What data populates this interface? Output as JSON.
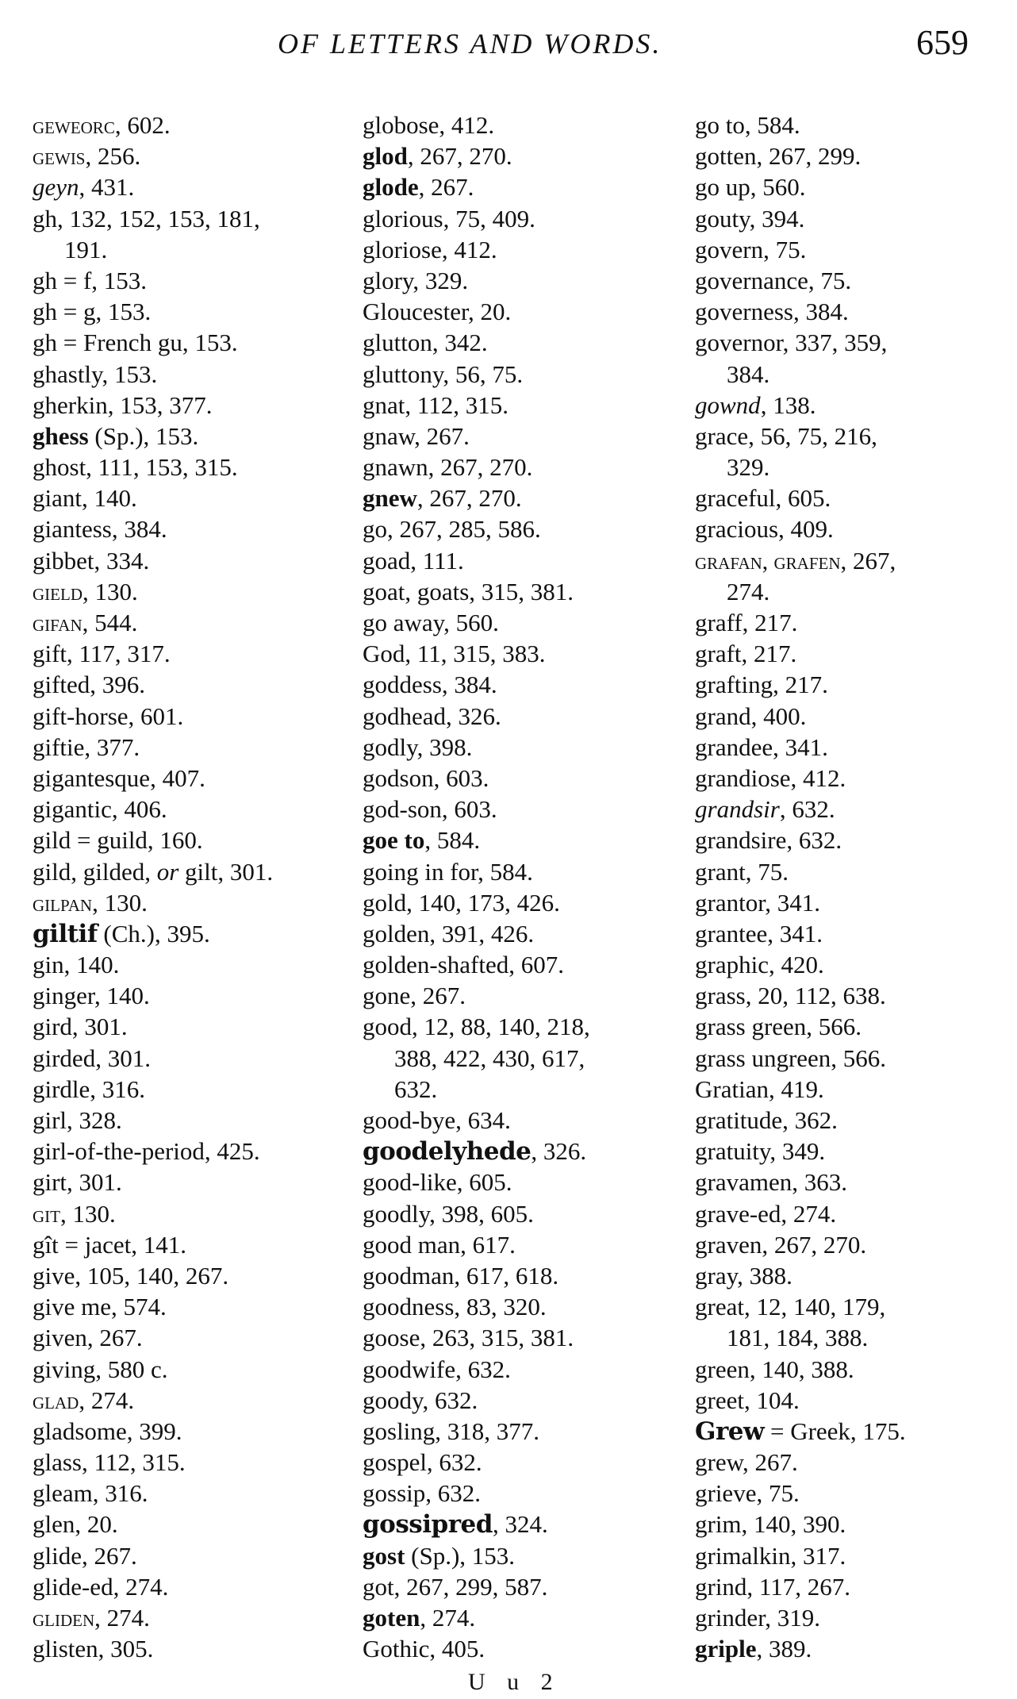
{
  "header": {
    "title": "OF LETTERS AND WORDS.",
    "page_number": "659"
  },
  "footer": {
    "signature": "U u 2"
  },
  "columns": [
    [
      {
        "parts": [
          {
            "t": "GEWEORC",
            "s": "sc"
          },
          {
            "t": ", 602."
          }
        ]
      },
      {
        "parts": [
          {
            "t": "GEWIS",
            "s": "sc"
          },
          {
            "t": ", 256."
          }
        ]
      },
      {
        "parts": [
          {
            "t": "geyn",
            "s": "it"
          },
          {
            "t": ", 431."
          }
        ]
      },
      {
        "parts": [
          {
            "t": "gh, 132, 152, 153, 181,"
          }
        ]
      },
      {
        "cont": true,
        "parts": [
          {
            "t": "191."
          }
        ]
      },
      {
        "parts": [
          {
            "t": "gh = f, 153."
          }
        ]
      },
      {
        "parts": [
          {
            "t": "gh = g, 153."
          }
        ]
      },
      {
        "parts": [
          {
            "t": "gh = French gu, 153."
          }
        ]
      },
      {
        "parts": [
          {
            "t": "ghastly, 153."
          }
        ]
      },
      {
        "parts": [
          {
            "t": "gherkin, 153, 377."
          }
        ]
      },
      {
        "parts": [
          {
            "t": "ghess",
            "s": "b"
          },
          {
            "t": " (Sp.), 153."
          }
        ]
      },
      {
        "parts": [
          {
            "t": "ghost, 111, 153, 315."
          }
        ]
      },
      {
        "parts": [
          {
            "t": "giant, 140."
          }
        ]
      },
      {
        "parts": [
          {
            "t": "giantess, 384."
          }
        ]
      },
      {
        "parts": [
          {
            "t": "gibbet, 334."
          }
        ]
      },
      {
        "parts": [
          {
            "t": "GIELD",
            "s": "sc"
          },
          {
            "t": ", 130."
          }
        ]
      },
      {
        "parts": [
          {
            "t": "GIFAN",
            "s": "sc"
          },
          {
            "t": ", 544."
          }
        ]
      },
      {
        "parts": [
          {
            "t": "gift, 117, 317."
          }
        ]
      },
      {
        "parts": [
          {
            "t": "gifted, 396."
          }
        ]
      },
      {
        "parts": [
          {
            "t": "gift-horse, 601."
          }
        ]
      },
      {
        "parts": [
          {
            "t": "giftie, 377."
          }
        ]
      },
      {
        "parts": [
          {
            "t": "gigantesque, 407."
          }
        ]
      },
      {
        "parts": [
          {
            "t": "gigantic, 406."
          }
        ]
      },
      {
        "parts": [
          {
            "t": "gild = guild, 160."
          }
        ]
      },
      {
        "parts": [
          {
            "t": "gild, gilded, "
          },
          {
            "t": "or",
            "s": "it"
          },
          {
            "t": " gilt, 301."
          }
        ]
      },
      {
        "parts": [
          {
            "t": "GILPAN",
            "s": "sc"
          },
          {
            "t": ", 130."
          }
        ]
      },
      {
        "parts": [
          {
            "t": "giltif",
            "s": "bk"
          },
          {
            "t": " (Ch.), 395."
          }
        ]
      },
      {
        "parts": [
          {
            "t": "gin, 140."
          }
        ]
      },
      {
        "parts": [
          {
            "t": "ginger, 140."
          }
        ]
      },
      {
        "parts": [
          {
            "t": "gird, 301."
          }
        ]
      },
      {
        "parts": [
          {
            "t": "girded, 301."
          }
        ]
      },
      {
        "parts": [
          {
            "t": "girdle, 316."
          }
        ]
      },
      {
        "parts": [
          {
            "t": "girl, 328."
          }
        ]
      },
      {
        "parts": [
          {
            "t": "girl-of-the-period, 425."
          }
        ]
      },
      {
        "parts": [
          {
            "t": "girt, 301."
          }
        ]
      },
      {
        "parts": [
          {
            "t": "GIT",
            "s": "sc"
          },
          {
            "t": ", 130."
          }
        ]
      },
      {
        "parts": [
          {
            "t": "gît = jacet, 141."
          }
        ]
      },
      {
        "parts": [
          {
            "t": "give, 105, 140, 267."
          }
        ]
      },
      {
        "parts": [
          {
            "t": "give me, 574."
          }
        ]
      },
      {
        "parts": [
          {
            "t": "given, 267."
          }
        ]
      },
      {
        "parts": [
          {
            "t": "giving, 580 c."
          }
        ]
      },
      {
        "parts": [
          {
            "t": "GLAD",
            "s": "sc"
          },
          {
            "t": ", 274."
          }
        ]
      },
      {
        "parts": [
          {
            "t": "gladsome, 399."
          }
        ]
      },
      {
        "parts": [
          {
            "t": "glass, 112, 315."
          }
        ]
      },
      {
        "parts": [
          {
            "t": "gleam, 316."
          }
        ]
      },
      {
        "parts": [
          {
            "t": "glen, 20."
          }
        ]
      },
      {
        "parts": [
          {
            "t": "glide, 267."
          }
        ]
      },
      {
        "parts": [
          {
            "t": "glide-ed, 274."
          }
        ]
      },
      {
        "parts": [
          {
            "t": "GLIDEN",
            "s": "sc"
          },
          {
            "t": ", 274."
          }
        ]
      },
      {
        "parts": [
          {
            "t": "glisten, 305."
          }
        ]
      }
    ],
    [
      {
        "parts": [
          {
            "t": "globose, 412."
          }
        ]
      },
      {
        "parts": [
          {
            "t": "glod",
            "s": "b"
          },
          {
            "t": ", 267, 270."
          }
        ]
      },
      {
        "parts": [
          {
            "t": "glode",
            "s": "b"
          },
          {
            "t": ", 267."
          }
        ]
      },
      {
        "parts": [
          {
            "t": "glorious, 75, 409."
          }
        ]
      },
      {
        "parts": [
          {
            "t": "gloriose, 412."
          }
        ]
      },
      {
        "parts": [
          {
            "t": "glory, 329."
          }
        ]
      },
      {
        "parts": [
          {
            "t": "Gloucester, 20."
          }
        ]
      },
      {
        "parts": [
          {
            "t": "glutton, 342."
          }
        ]
      },
      {
        "parts": [
          {
            "t": "gluttony, 56, 75."
          }
        ]
      },
      {
        "parts": [
          {
            "t": "gnat, 112, 315."
          }
        ]
      },
      {
        "parts": [
          {
            "t": "gnaw, 267."
          }
        ]
      },
      {
        "parts": [
          {
            "t": "gnawn, 267, 270."
          }
        ]
      },
      {
        "parts": [
          {
            "t": "gnew",
            "s": "b"
          },
          {
            "t": ", 267, 270."
          }
        ]
      },
      {
        "parts": [
          {
            "t": "go, 267, 285, 586."
          }
        ]
      },
      {
        "parts": [
          {
            "t": "goad, 111."
          }
        ]
      },
      {
        "parts": [
          {
            "t": "goat, goats, 315, 381."
          }
        ]
      },
      {
        "parts": [
          {
            "t": "go away, 560."
          }
        ]
      },
      {
        "parts": [
          {
            "t": "God, 11, 315, 383."
          }
        ]
      },
      {
        "parts": [
          {
            "t": "goddess, 384."
          }
        ]
      },
      {
        "parts": [
          {
            "t": "godhead, 326."
          }
        ]
      },
      {
        "parts": [
          {
            "t": "godly, 398."
          }
        ]
      },
      {
        "parts": [
          {
            "t": "godson, 603."
          }
        ]
      },
      {
        "parts": [
          {
            "t": "god-son, 603."
          }
        ]
      },
      {
        "parts": [
          {
            "t": "goe to",
            "s": "b"
          },
          {
            "t": ", 584."
          }
        ]
      },
      {
        "parts": [
          {
            "t": "going in for, 584."
          }
        ]
      },
      {
        "parts": [
          {
            "t": "gold, 140, 173, 426."
          }
        ]
      },
      {
        "parts": [
          {
            "t": "golden, 391, 426."
          }
        ]
      },
      {
        "parts": [
          {
            "t": "golden-shafted, 607."
          }
        ]
      },
      {
        "parts": [
          {
            "t": "gone, 267."
          }
        ]
      },
      {
        "parts": [
          {
            "t": "good, 12, 88, 140, 218,"
          }
        ]
      },
      {
        "cont": true,
        "parts": [
          {
            "t": "388, 422, 430, 617,"
          }
        ]
      },
      {
        "cont": true,
        "parts": [
          {
            "t": "632."
          }
        ]
      },
      {
        "parts": [
          {
            "t": "good-bye, 634."
          }
        ]
      },
      {
        "parts": [
          {
            "t": "goodelyhede",
            "s": "bk"
          },
          {
            "t": ", 326."
          }
        ]
      },
      {
        "parts": [
          {
            "t": "good-like, 605."
          }
        ]
      },
      {
        "parts": [
          {
            "t": "goodly, 398, 605."
          }
        ]
      },
      {
        "parts": [
          {
            "t": "good man, 617."
          }
        ]
      },
      {
        "parts": [
          {
            "t": "goodman, 617, 618."
          }
        ]
      },
      {
        "parts": [
          {
            "t": "goodness, 83, 320."
          }
        ]
      },
      {
        "parts": [
          {
            "t": "goose, 263, 315, 381."
          }
        ]
      },
      {
        "parts": [
          {
            "t": "goodwife, 632."
          }
        ]
      },
      {
        "parts": [
          {
            "t": "goody, 632."
          }
        ]
      },
      {
        "parts": [
          {
            "t": "gosling, 318, 377."
          }
        ]
      },
      {
        "parts": [
          {
            "t": "gospel, 632."
          }
        ]
      },
      {
        "parts": [
          {
            "t": "gossip, 632."
          }
        ]
      },
      {
        "parts": [
          {
            "t": "gossipred",
            "s": "bk"
          },
          {
            "t": ", 324."
          }
        ]
      },
      {
        "parts": [
          {
            "t": "gost",
            "s": "b"
          },
          {
            "t": " (Sp.), 153."
          }
        ]
      },
      {
        "parts": [
          {
            "t": "got, 267, 299, 587."
          }
        ]
      },
      {
        "parts": [
          {
            "t": "goten",
            "s": "b"
          },
          {
            "t": ", 274."
          }
        ]
      },
      {
        "parts": [
          {
            "t": "Gothic, 405."
          }
        ]
      }
    ],
    [
      {
        "parts": [
          {
            "t": "go to, 584."
          }
        ]
      },
      {
        "parts": [
          {
            "t": "gotten, 267, 299."
          }
        ]
      },
      {
        "parts": [
          {
            "t": "go up, 560."
          }
        ]
      },
      {
        "parts": [
          {
            "t": "gouty, 394."
          }
        ]
      },
      {
        "parts": [
          {
            "t": "govern, 75."
          }
        ]
      },
      {
        "parts": [
          {
            "t": "governance, 75."
          }
        ]
      },
      {
        "parts": [
          {
            "t": "governess, 384."
          }
        ]
      },
      {
        "parts": [
          {
            "t": "governor,  337,  359,"
          }
        ]
      },
      {
        "cont": true,
        "parts": [
          {
            "t": "384."
          }
        ]
      },
      {
        "parts": [
          {
            "t": "gownd",
            "s": "it"
          },
          {
            "t": ", 138."
          }
        ]
      },
      {
        "parts": [
          {
            "t": "grace,  56,  75,  216,"
          }
        ]
      },
      {
        "cont": true,
        "parts": [
          {
            "t": "329."
          }
        ]
      },
      {
        "parts": [
          {
            "t": "graceful, 605."
          }
        ]
      },
      {
        "parts": [
          {
            "t": "gracious, 409."
          }
        ]
      },
      {
        "parts": [
          {
            "t": "GRAFAN, GRAFEN",
            "s": "sc"
          },
          {
            "t": ", 267,"
          }
        ]
      },
      {
        "cont": true,
        "parts": [
          {
            "t": "274."
          }
        ]
      },
      {
        "parts": [
          {
            "t": "graff, 217."
          }
        ]
      },
      {
        "parts": [
          {
            "t": "graft, 217."
          }
        ]
      },
      {
        "parts": [
          {
            "t": "grafting, 217."
          }
        ]
      },
      {
        "parts": [
          {
            "t": "grand, 400."
          }
        ]
      },
      {
        "parts": [
          {
            "t": "grandee, 341."
          }
        ]
      },
      {
        "parts": [
          {
            "t": "grandiose, 412."
          }
        ]
      },
      {
        "parts": [
          {
            "t": "grandsir",
            "s": "it"
          },
          {
            "t": ", 632."
          }
        ]
      },
      {
        "parts": [
          {
            "t": "grandsire, 632."
          }
        ]
      },
      {
        "parts": [
          {
            "t": "grant, 75."
          }
        ]
      },
      {
        "parts": [
          {
            "t": "grantor, 341."
          }
        ]
      },
      {
        "parts": [
          {
            "t": "grantee, 341."
          }
        ]
      },
      {
        "parts": [
          {
            "t": "graphic, 420."
          }
        ]
      },
      {
        "parts": [
          {
            "t": "grass, 20, 112, 638."
          }
        ]
      },
      {
        "parts": [
          {
            "t": "grass green, 566."
          }
        ]
      },
      {
        "parts": [
          {
            "t": "grass ungreen, 566."
          }
        ]
      },
      {
        "parts": [
          {
            "t": "Gratian, 419."
          }
        ]
      },
      {
        "parts": [
          {
            "t": "gratitude, 362."
          }
        ]
      },
      {
        "parts": [
          {
            "t": "gratuity, 349."
          }
        ]
      },
      {
        "parts": [
          {
            "t": "gravamen, 363."
          }
        ]
      },
      {
        "parts": [
          {
            "t": "grave-ed, 274."
          }
        ]
      },
      {
        "parts": [
          {
            "t": "graven, 267, 270."
          }
        ]
      },
      {
        "parts": [
          {
            "t": "gray, 388."
          }
        ]
      },
      {
        "parts": [
          {
            "t": "great,  12,  140,  179,"
          }
        ]
      },
      {
        "cont": true,
        "parts": [
          {
            "t": "181, 184, 388."
          }
        ]
      },
      {
        "parts": [
          {
            "t": "green, 140, 388."
          }
        ]
      },
      {
        "parts": [
          {
            "t": "greet, 104."
          }
        ]
      },
      {
        "parts": [
          {
            "t": "Grew",
            "s": "bk"
          },
          {
            "t": " = Greek, 175."
          }
        ]
      },
      {
        "parts": [
          {
            "t": "grew, 267."
          }
        ]
      },
      {
        "parts": [
          {
            "t": "grieve, 75."
          }
        ]
      },
      {
        "parts": [
          {
            "t": "grim, 140, 390."
          }
        ]
      },
      {
        "parts": [
          {
            "t": "grimalkin, 317."
          }
        ]
      },
      {
        "parts": [
          {
            "t": "grind, 117, 267."
          }
        ]
      },
      {
        "parts": [
          {
            "t": "grinder, 319."
          }
        ]
      },
      {
        "parts": [
          {
            "t": "griple",
            "s": "b"
          },
          {
            "t": ", 389."
          }
        ]
      }
    ]
  ]
}
